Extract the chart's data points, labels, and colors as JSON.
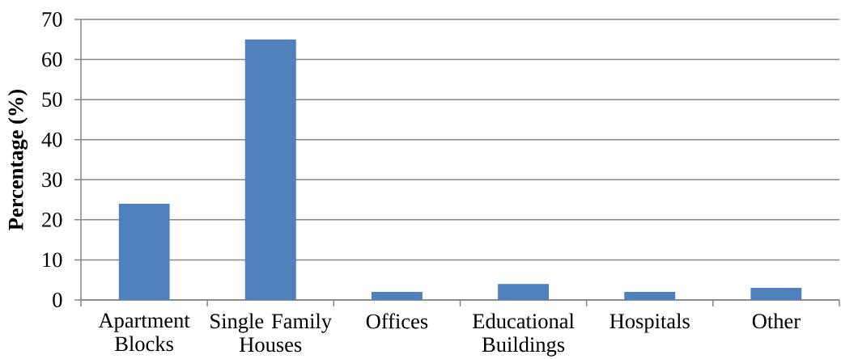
{
  "chart_data": {
    "type": "bar",
    "ylabel": "Percentage (%)",
    "categories": [
      "Apartment Blocks",
      "Single Family Houses",
      "Offices",
      "Educational Buildings",
      "Hospitals",
      "Other"
    ],
    "values": [
      24,
      65,
      2,
      4,
      2,
      3
    ],
    "color": "#4f81bd",
    "ylim": [
      0,
      70
    ],
    "yticks": [
      0,
      10,
      20,
      30,
      40,
      50,
      60,
      70
    ],
    "grid": "y"
  }
}
